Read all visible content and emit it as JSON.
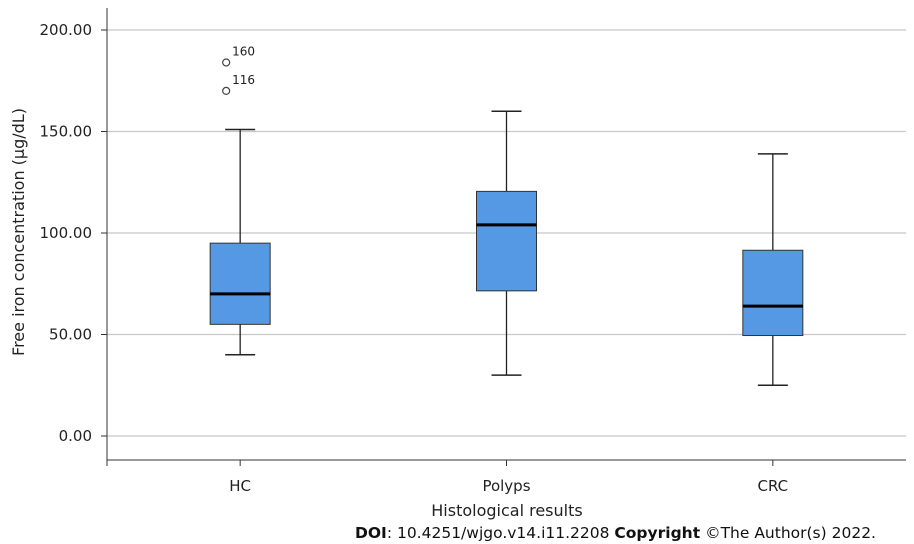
{
  "chart_data": {
    "type": "box",
    "xlabel": "Histological results",
    "ylabel": "Free iron concentration (µg/dL)",
    "ylim": [
      -12,
      210
    ],
    "yticks": [
      0,
      50,
      100,
      150,
      200
    ],
    "ytick_labels": [
      "0.00",
      "50.00",
      "100.00",
      "150.00",
      "200.00"
    ],
    "grid": "horizontal",
    "categories": [
      "HC",
      "Polyps",
      "CRC"
    ],
    "boxes": [
      {
        "category": "HC",
        "whisker_low": 40,
        "q1": 55,
        "median": 70,
        "q3": 95,
        "whisker_high": 151,
        "outliers": [
          {
            "value": 184,
            "label": "160"
          },
          {
            "value": 170,
            "label": "116"
          }
        ]
      },
      {
        "category": "Polyps",
        "whisker_low": 30,
        "q1": 71.5,
        "median": 104,
        "q3": 120.5,
        "whisker_high": 160,
        "outliers": []
      },
      {
        "category": "CRC",
        "whisker_low": 25,
        "q1": 49.5,
        "median": 64,
        "q3": 91.5,
        "whisker_high": 139,
        "outliers": []
      }
    ],
    "box_color": "#5599e4"
  },
  "footer": {
    "doi_label": "DOI",
    "doi_value": ": 10.4251/wjgo.v14.i11.2208 ",
    "copyright_label": "Copyright",
    "copyright_value": " ©The Author(s) 2022."
  }
}
